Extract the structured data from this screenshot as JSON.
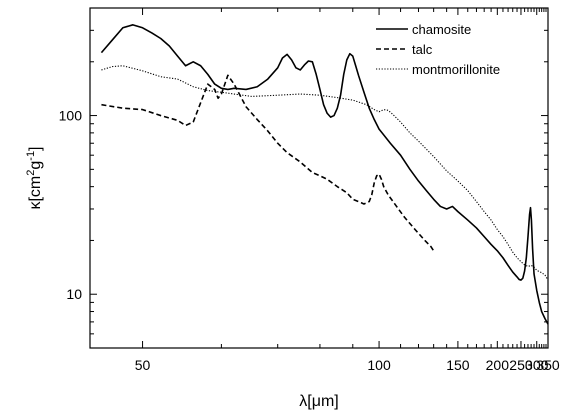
{
  "chart_data": {
    "type": "line",
    "xlabel": "λ[μm]",
    "ylabel_parts": [
      "κ[cm",
      "2",
      "g",
      "-1",
      "]"
    ],
    "x_scale": "reciprocal",
    "y_scale": "log",
    "xlim": [
      45,
      350
    ],
    "ylim": [
      5,
      400
    ],
    "x_ticks": [
      50,
      100,
      150,
      200,
      250,
      300,
      350
    ],
    "x_tick_labels": [
      "50",
      "100",
      "150",
      "200",
      "250",
      "300",
      "350"
    ],
    "y_ticks": [
      10,
      100
    ],
    "y_tick_labels": [
      "10",
      "100"
    ],
    "legend_position": "top-right",
    "grid": false,
    "series": [
      {
        "name": "chamosite",
        "style": "solid",
        "points": [
          [
            46,
            225
          ],
          [
            47,
            265
          ],
          [
            48,
            310
          ],
          [
            49,
            322
          ],
          [
            50,
            310
          ],
          [
            51,
            290
          ],
          [
            52,
            270
          ],
          [
            53,
            245
          ],
          [
            54,
            215
          ],
          [
            55,
            190
          ],
          [
            56,
            200
          ],
          [
            57,
            190
          ],
          [
            58,
            170
          ],
          [
            59,
            150
          ],
          [
            60,
            142
          ],
          [
            61,
            140
          ],
          [
            62,
            142
          ],
          [
            64,
            140
          ],
          [
            66,
            145
          ],
          [
            68,
            160
          ],
          [
            70,
            185
          ],
          [
            71,
            210
          ],
          [
            72,
            220
          ],
          [
            73,
            205
          ],
          [
            74,
            185
          ],
          [
            75,
            180
          ],
          [
            76,
            192
          ],
          [
            77,
            202
          ],
          [
            78,
            200
          ],
          [
            79,
            170
          ],
          [
            80,
            140
          ],
          [
            81,
            115
          ],
          [
            82,
            103
          ],
          [
            83,
            98
          ],
          [
            84,
            100
          ],
          [
            85,
            110
          ],
          [
            86,
            130
          ],
          [
            87,
            170
          ],
          [
            88,
            205
          ],
          [
            89,
            222
          ],
          [
            90,
            215
          ],
          [
            91,
            190
          ],
          [
            92,
            168
          ],
          [
            94,
            135
          ],
          [
            96,
            110
          ],
          [
            98,
            95
          ],
          [
            100,
            84
          ],
          [
            105,
            70
          ],
          [
            110,
            60
          ],
          [
            115,
            50
          ],
          [
            120,
            43
          ],
          [
            125,
            38
          ],
          [
            130,
            34
          ],
          [
            135,
            31
          ],
          [
            140,
            30
          ],
          [
            145,
            31
          ],
          [
            150,
            29
          ],
          [
            160,
            26
          ],
          [
            170,
            23.5
          ],
          [
            180,
            21
          ],
          [
            190,
            19
          ],
          [
            200,
            17.5
          ],
          [
            210,
            16
          ],
          [
            220,
            14.5
          ],
          [
            230,
            13.3
          ],
          [
            240,
            12.5
          ],
          [
            245,
            12.1
          ],
          [
            250,
            12
          ],
          [
            255,
            12.3
          ],
          [
            260,
            13.5
          ],
          [
            265,
            16
          ],
          [
            270,
            21
          ],
          [
            275,
            28
          ],
          [
            278,
            30.5
          ],
          [
            281,
            26
          ],
          [
            285,
            18
          ],
          [
            290,
            13
          ],
          [
            300,
            10.5
          ],
          [
            310,
            9
          ],
          [
            320,
            8
          ],
          [
            335,
            7.3
          ],
          [
            350,
            6.8
          ]
        ]
      },
      {
        "name": "talc",
        "style": "dashed",
        "points": [
          [
            46,
            115
          ],
          [
            48,
            110
          ],
          [
            50,
            108
          ],
          [
            52,
            100
          ],
          [
            54,
            94
          ],
          [
            55,
            88
          ],
          [
            56,
            92
          ],
          [
            57,
            118
          ],
          [
            58,
            150
          ],
          [
            59,
            140
          ],
          [
            59.5,
            125
          ],
          [
            60,
            132
          ],
          [
            61,
            168
          ],
          [
            62,
            150
          ],
          [
            64,
            112
          ],
          [
            66,
            95
          ],
          [
            68,
            82
          ],
          [
            70,
            70
          ],
          [
            72,
            62
          ],
          [
            75,
            55
          ],
          [
            78,
            48
          ],
          [
            80,
            46
          ],
          [
            82,
            44
          ],
          [
            85,
            40
          ],
          [
            88,
            37
          ],
          [
            90,
            34
          ],
          [
            92,
            33
          ],
          [
            94,
            32
          ],
          [
            96,
            33
          ],
          [
            97,
            36
          ],
          [
            98,
            42
          ],
          [
            99,
            46
          ],
          [
            100,
            47
          ],
          [
            101,
            44
          ],
          [
            102,
            40
          ],
          [
            104,
            36
          ],
          [
            108,
            31
          ],
          [
            112,
            27
          ],
          [
            118,
            23
          ],
          [
            124,
            20
          ],
          [
            128,
            18.5
          ],
          [
            130,
            17.5
          ]
        ]
      },
      {
        "name": "montmorillonite",
        "style": "dotted",
        "points": [
          [
            46,
            180
          ],
          [
            47,
            188
          ],
          [
            48,
            190
          ],
          [
            50,
            178
          ],
          [
            52,
            165
          ],
          [
            54,
            160
          ],
          [
            56,
            145
          ],
          [
            58,
            138
          ],
          [
            60,
            135
          ],
          [
            62,
            132
          ],
          [
            65,
            128
          ],
          [
            70,
            130
          ],
          [
            75,
            132
          ],
          [
            80,
            130
          ],
          [
            85,
            126
          ],
          [
            90,
            122
          ],
          [
            95,
            115
          ],
          [
            98,
            108
          ],
          [
            100,
            105
          ],
          [
            102,
            108
          ],
          [
            104,
            107
          ],
          [
            106,
            102
          ],
          [
            110,
            92
          ],
          [
            115,
            80
          ],
          [
            120,
            72
          ],
          [
            130,
            59
          ],
          [
            140,
            49
          ],
          [
            150,
            43
          ],
          [
            160,
            38
          ],
          [
            170,
            33
          ],
          [
            180,
            29
          ],
          [
            190,
            26
          ],
          [
            200,
            23
          ],
          [
            210,
            21
          ],
          [
            220,
            19
          ],
          [
            230,
            17.2
          ],
          [
            240,
            16
          ],
          [
            250,
            15.2
          ],
          [
            260,
            14.6
          ],
          [
            270,
            14.3
          ],
          [
            280,
            14.5
          ],
          [
            290,
            14.2
          ],
          [
            300,
            13.6
          ],
          [
            320,
            13.2
          ],
          [
            335,
            12.8
          ],
          [
            350,
            12
          ]
        ]
      }
    ]
  }
}
